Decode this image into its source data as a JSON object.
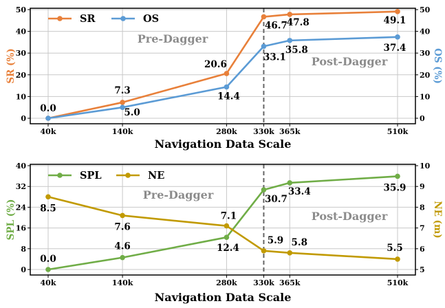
{
  "colors": {
    "SR": "#e8803a",
    "OS": "#5b9bd5",
    "SPL": "#70ad47",
    "NE": "#c19a00",
    "annotation": "#8c8c8c",
    "grid": "#c8c8c8"
  },
  "chart_data": [
    {
      "type": "line",
      "xlabel": "Navigation Data Scale",
      "ylabel_left": "SR (%)",
      "ylabel_right": "OS (%)",
      "x_categories": [
        "40k",
        "140k",
        "280k",
        "330k",
        "365k",
        "510k"
      ],
      "x_values": [
        40,
        140,
        280,
        330,
        365,
        510
      ],
      "ylim_left": [
        0,
        50
      ],
      "yticks_left": [
        0,
        10,
        20,
        30,
        40,
        50
      ],
      "ylim_right": [
        0,
        50
      ],
      "yticks_right": [
        0,
        10,
        20,
        30,
        40,
        50
      ],
      "divider_x": 330,
      "grid": true,
      "legend": "top-left",
      "annotations": [
        "Pre-Dagger",
        "Post-Dagger"
      ],
      "series": [
        {
          "name": "SR",
          "axis": "left",
          "values": [
            0.0,
            7.3,
            20.6,
            46.7,
            47.8,
            49.1
          ]
        },
        {
          "name": "OS",
          "axis": "right",
          "values": [
            0.0,
            5.0,
            14.4,
            33.1,
            35.8,
            37.4
          ]
        }
      ]
    },
    {
      "type": "line",
      "xlabel": "Navigation Data Scale",
      "ylabel_left": "SPL (%)",
      "ylabel_right": "NE (m)",
      "x_categories": [
        "40k",
        "140k",
        "280k",
        "330k",
        "365k",
        "510k"
      ],
      "x_values": [
        40,
        140,
        280,
        330,
        365,
        510
      ],
      "ylim_left": [
        0,
        40
      ],
      "yticks_left": [
        0,
        8,
        16,
        24,
        32,
        40
      ],
      "ylim_right": [
        5,
        10
      ],
      "yticks_right": [
        5,
        6,
        7,
        8,
        9,
        10
      ],
      "divider_x": 330,
      "grid": true,
      "legend": "top-left",
      "annotations": [
        "Pre-Dagger",
        "Post-Dagger"
      ],
      "series": [
        {
          "name": "SPL",
          "axis": "left",
          "values": [
            0.0,
            4.6,
            12.4,
            30.7,
            33.4,
            35.9
          ]
        },
        {
          "name": "NE",
          "axis": "right",
          "values": [
            8.5,
            7.6,
            7.1,
            5.9,
            5.8,
            5.5
          ]
        }
      ]
    }
  ]
}
